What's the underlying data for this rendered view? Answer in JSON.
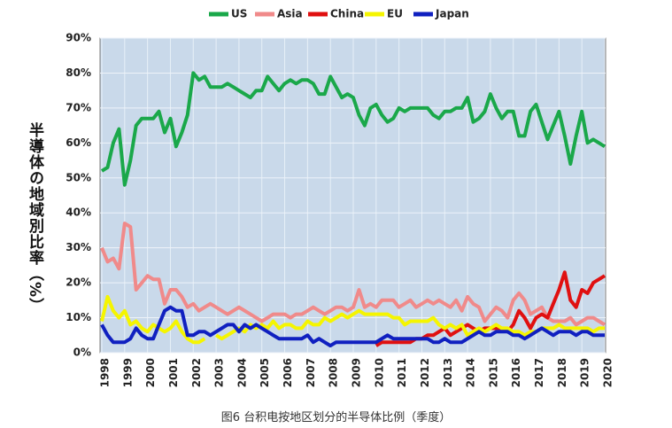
{
  "chart_data": {
    "type": "line",
    "y_label": "半導体の地域別比率（%）",
    "caption": "图6 台积电按地区划分的半导体比例（季度）",
    "categories": [
      "1998",
      null,
      null,
      null,
      "1999",
      null,
      null,
      null,
      "2000",
      null,
      null,
      null,
      "2001",
      null,
      null,
      null,
      "2002",
      null,
      null,
      null,
      "2003",
      null,
      null,
      null,
      "2004",
      null,
      null,
      null,
      "2005",
      null,
      null,
      null,
      "2006",
      null,
      null,
      null,
      "2007",
      null,
      null,
      null,
      "2008",
      null,
      null,
      null,
      "2009",
      null,
      null,
      null,
      "2010",
      null,
      null,
      null,
      "2011",
      null,
      null,
      null,
      "2012",
      null,
      null,
      null,
      "2013",
      null,
      null,
      null,
      "2014",
      null,
      null,
      null,
      "2015",
      null,
      null,
      null,
      "2016",
      null,
      null,
      null,
      "2017",
      null,
      null,
      null,
      "2018",
      null,
      null,
      null,
      "2019",
      null,
      null,
      null,
      "2020"
    ],
    "ylim": [
      0,
      90
    ],
    "yticks": [
      {
        "value": 0,
        "label": "0%"
      },
      {
        "value": 10,
        "label": "10%"
      },
      {
        "value": 20,
        "label": "20%"
      },
      {
        "value": 30,
        "label": "30%"
      },
      {
        "value": 40,
        "label": "40%"
      },
      {
        "value": 50,
        "label": "50%"
      },
      {
        "value": 60,
        "label": "60%"
      },
      {
        "value": 70,
        "label": "70%"
      },
      {
        "value": 80,
        "label": "80%"
      },
      {
        "value": 90,
        "label": "90%"
      }
    ],
    "grid": true,
    "legend": "top",
    "series": [
      {
        "name": "US",
        "color": "#1aa84a",
        "values": [
          52,
          53,
          60,
          64,
          48,
          55,
          65,
          67,
          67,
          67,
          69,
          63,
          67,
          59,
          63,
          68,
          80,
          78,
          79,
          76,
          76,
          76,
          77,
          76,
          75,
          74,
          73,
          75,
          75,
          79,
          77,
          75,
          77,
          78,
          77,
          78,
          78,
          77,
          74,
          74,
          79,
          76,
          73,
          74,
          73,
          68,
          65,
          70,
          71,
          68,
          66,
          67,
          70,
          69,
          70,
          70,
          70,
          70,
          68,
          67,
          69,
          69,
          70,
          70,
          73,
          66,
          67,
          69,
          74,
          70,
          67,
          69,
          69,
          62,
          62,
          69,
          71,
          66,
          61,
          65,
          69,
          62,
          54,
          62,
          69,
          60,
          61,
          60,
          59
        ]
      },
      {
        "name": "Asia",
        "color": "#f08a8a",
        "values": [
          30,
          26,
          27,
          24,
          37,
          36,
          18,
          20,
          22,
          21,
          21,
          14,
          18,
          18,
          16,
          13,
          14,
          12,
          13,
          14,
          13,
          12,
          11,
          12,
          13,
          12,
          11,
          10,
          9,
          10,
          11,
          11,
          11,
          10,
          11,
          11,
          12,
          13,
          12,
          11,
          12,
          13,
          13,
          12,
          13,
          18,
          13,
          14,
          13,
          15,
          15,
          15,
          13,
          14,
          15,
          13,
          14,
          15,
          14,
          15,
          14,
          13,
          15,
          12,
          16,
          14,
          13,
          9,
          11,
          13,
          12,
          10,
          15,
          17,
          15,
          11,
          12,
          13,
          10,
          9,
          9,
          9,
          10,
          8,
          9,
          10,
          10,
          9,
          8
        ]
      },
      {
        "name": "China",
        "color": "#e01010",
        "values": [
          null,
          null,
          null,
          null,
          null,
          null,
          null,
          null,
          null,
          null,
          null,
          null,
          null,
          null,
          null,
          null,
          null,
          null,
          null,
          null,
          null,
          null,
          null,
          null,
          null,
          null,
          null,
          null,
          null,
          null,
          null,
          null,
          null,
          null,
          null,
          null,
          null,
          null,
          null,
          null,
          null,
          null,
          null,
          null,
          null,
          null,
          null,
          null,
          2,
          3,
          3,
          3,
          3,
          3,
          3,
          4,
          4,
          5,
          5,
          6,
          7,
          5,
          6,
          7,
          8,
          7,
          6,
          7,
          7,
          7,
          7,
          6,
          8,
          12,
          10,
          7,
          10,
          11,
          10,
          14,
          18,
          23,
          15,
          13,
          18,
          17,
          20,
          21,
          22
        ]
      },
      {
        "name": "EU",
        "color": "#f5f500",
        "values": [
          9,
          16,
          12,
          10,
          12,
          8,
          9,
          7,
          6,
          8,
          7,
          6,
          7,
          9,
          6,
          4,
          3,
          3,
          4,
          null,
          5,
          4,
          5,
          6,
          7,
          6,
          8,
          7,
          8,
          7,
          9,
          7,
          8,
          8,
          7,
          7,
          9,
          8,
          8,
          10,
          9,
          10,
          11,
          10,
          11,
          12,
          11,
          11,
          11,
          11,
          11,
          10,
          10,
          8,
          9,
          9,
          9,
          9,
          10,
          8,
          7,
          8,
          7,
          8,
          5,
          6,
          7,
          6,
          7,
          8,
          7,
          7,
          6,
          6,
          5,
          6,
          6,
          7,
          7,
          7,
          8,
          7,
          7,
          7,
          7,
          7,
          6,
          7,
          7
        ]
      },
      {
        "name": "Japan",
        "color": "#1020c0",
        "values": [
          8,
          5,
          3,
          3,
          3,
          4,
          7,
          5,
          4,
          4,
          8,
          12,
          13,
          12,
          12,
          5,
          5,
          6,
          6,
          5,
          6,
          7,
          8,
          8,
          6,
          8,
          7,
          8,
          7,
          6,
          5,
          4,
          4,
          4,
          4,
          4,
          5,
          3,
          4,
          3,
          2,
          3,
          3,
          3,
          3,
          3,
          3,
          3,
          3,
          4,
          5,
          4,
          4,
          4,
          4,
          4,
          4,
          4,
          3,
          3,
          4,
          3,
          3,
          3,
          4,
          5,
          6,
          5,
          5,
          6,
          6,
          6,
          5,
          5,
          4,
          5,
          6,
          7,
          6,
          5,
          6,
          6,
          6,
          5,
          6,
          6,
          5,
          5,
          5
        ]
      }
    ]
  }
}
